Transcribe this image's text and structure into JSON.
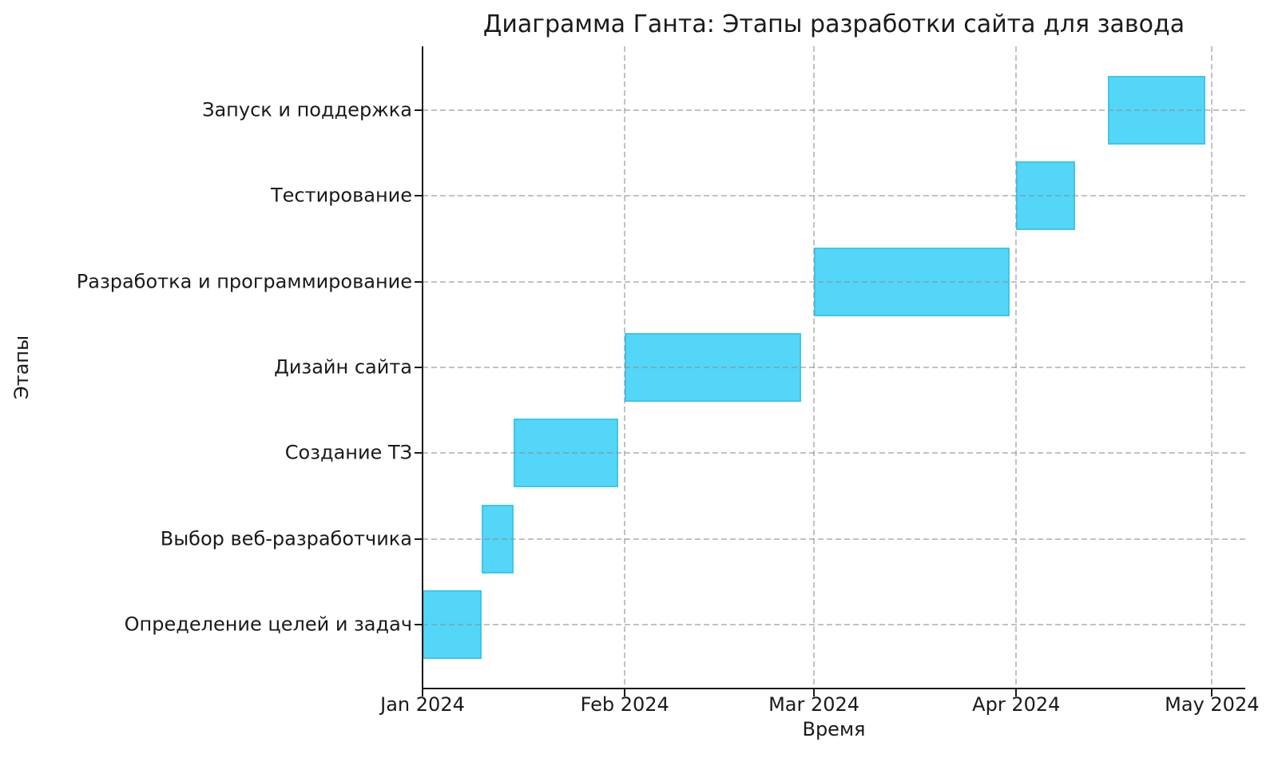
{
  "chart_data": {
    "type": "bar",
    "subtype": "gantt",
    "title": "Диаграмма Ганта: Этапы разработки сайта для завода",
    "xlabel": "Время",
    "ylabel": "Этапы",
    "grid": true,
    "bar_color": "#53D6F8",
    "bar_edge_color": "#2AB2DD",
    "grid_color": "#8F8F8F",
    "axis_color": "#1A1A1A",
    "xlim_days": [
      0,
      126.1
    ],
    "ylim_units": [
      -0.74,
      6.74
    ],
    "bar_height_units": 0.8,
    "x_ticks": [
      {
        "label": "Jan 2024",
        "day": 0
      },
      {
        "label": "Feb 2024",
        "day": 31
      },
      {
        "label": "Mar 2024",
        "day": 60
      },
      {
        "label": "Apr 2024",
        "day": 91
      },
      {
        "label": "May 2024",
        "day": 121
      }
    ],
    "tasks": [
      {
        "label": "Определение целей и задач",
        "start": "2024-01-01",
        "end": "2024-01-10",
        "start_day": 0,
        "end_day": 9
      },
      {
        "label": "Выбор веб-разработчика",
        "start": "2024-01-10",
        "end": "2024-01-15",
        "start_day": 9,
        "end_day": 14
      },
      {
        "label": "Создание ТЗ",
        "start": "2024-01-15",
        "end": "2024-01-31",
        "start_day": 14,
        "end_day": 30
      },
      {
        "label": "Дизайн сайта",
        "start": "2024-02-01",
        "end": "2024-02-28",
        "start_day": 31,
        "end_day": 58
      },
      {
        "label": "Разработка и программирование",
        "start": "2024-03-01",
        "end": "2024-03-31",
        "start_day": 60,
        "end_day": 90
      },
      {
        "label": "Тестирование",
        "start": "2024-04-01",
        "end": "2024-04-10",
        "start_day": 91,
        "end_day": 100
      },
      {
        "label": "Запуск и поддержка",
        "start": "2024-04-15",
        "end": "2024-04-30",
        "start_day": 105,
        "end_day": 120
      }
    ]
  }
}
